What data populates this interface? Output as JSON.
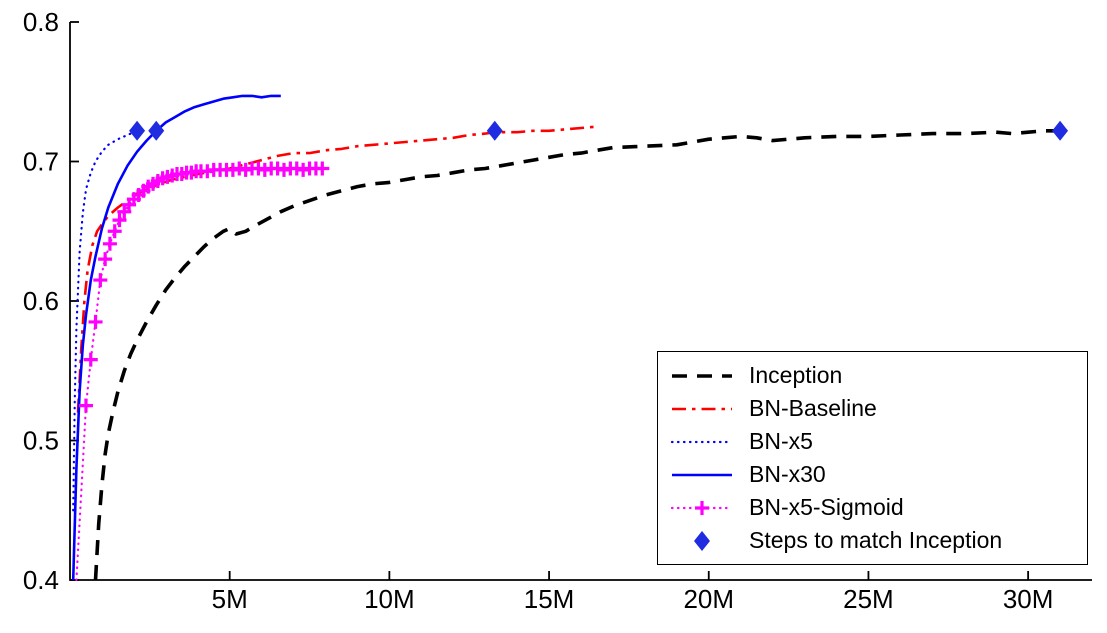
{
  "chart_data": {
    "type": "line",
    "title": "",
    "xlabel": "",
    "ylabel": "",
    "grid": false,
    "axis_color": "#000000",
    "background": "#ffffff",
    "xlim": [
      0,
      32
    ],
    "ylim": [
      0.4,
      0.8
    ],
    "x_tick_format": "millions",
    "xticks": [
      {
        "value": 5,
        "label": "5M"
      },
      {
        "value": 10,
        "label": "10M"
      },
      {
        "value": 15,
        "label": "15M"
      },
      {
        "value": 20,
        "label": "20M"
      },
      {
        "value": 25,
        "label": "25M"
      },
      {
        "value": 30,
        "label": "30M"
      }
    ],
    "yticks": [
      {
        "value": 0.4,
        "label": "0.4"
      },
      {
        "value": 0.5,
        "label": "0.5"
      },
      {
        "value": 0.6,
        "label": "0.6"
      },
      {
        "value": 0.7,
        "label": "0.7"
      },
      {
        "value": 0.8,
        "label": "0.8"
      }
    ],
    "legend_position": "lower right",
    "series": [
      {
        "name": "Inception",
        "color": "#000000",
        "line": "dashed",
        "width": 3.6,
        "marker": null,
        "points": [
          [
            0.8,
            0.4
          ],
          [
            0.9,
            0.44
          ],
          [
            1.0,
            0.468
          ],
          [
            1.1,
            0.49
          ],
          [
            1.2,
            0.505
          ],
          [
            1.35,
            0.521
          ],
          [
            1.5,
            0.535
          ],
          [
            1.7,
            0.55
          ],
          [
            1.9,
            0.562
          ],
          [
            2.1,
            0.572
          ],
          [
            2.4,
            0.585
          ],
          [
            2.7,
            0.597
          ],
          [
            3.0,
            0.608
          ],
          [
            3.3,
            0.617
          ],
          [
            3.6,
            0.625
          ],
          [
            3.9,
            0.632
          ],
          [
            4.2,
            0.639
          ],
          [
            4.5,
            0.645
          ],
          [
            4.8,
            0.65
          ],
          [
            5.0,
            0.652
          ],
          [
            5.2,
            0.648
          ],
          [
            5.5,
            0.65
          ],
          [
            5.8,
            0.654
          ],
          [
            6.2,
            0.659
          ],
          [
            6.6,
            0.664
          ],
          [
            7.0,
            0.668
          ],
          [
            7.5,
            0.672
          ],
          [
            8.0,
            0.676
          ],
          [
            8.5,
            0.679
          ],
          [
            9.0,
            0.682
          ],
          [
            9.5,
            0.684
          ],
          [
            10.0,
            0.685
          ],
          [
            10.5,
            0.687
          ],
          [
            11.0,
            0.689
          ],
          [
            11.5,
            0.69
          ],
          [
            12.0,
            0.692
          ],
          [
            12.5,
            0.694
          ],
          [
            13.0,
            0.695
          ],
          [
            13.5,
            0.697
          ],
          [
            14.0,
            0.699
          ],
          [
            14.5,
            0.701
          ],
          [
            15.0,
            0.703
          ],
          [
            15.5,
            0.705
          ],
          [
            16.0,
            0.706
          ],
          [
            16.5,
            0.708
          ],
          [
            17.0,
            0.71
          ],
          [
            18.0,
            0.711
          ],
          [
            19.0,
            0.712
          ],
          [
            19.5,
            0.714
          ],
          [
            20.0,
            0.716
          ],
          [
            20.5,
            0.717
          ],
          [
            21.0,
            0.718
          ],
          [
            21.5,
            0.717
          ],
          [
            22.0,
            0.715
          ],
          [
            22.5,
            0.716
          ],
          [
            23.0,
            0.717
          ],
          [
            24.0,
            0.718
          ],
          [
            25.0,
            0.718
          ],
          [
            26.0,
            0.719
          ],
          [
            27.0,
            0.72
          ],
          [
            28.0,
            0.72
          ],
          [
            29.0,
            0.721
          ],
          [
            29.5,
            0.72
          ],
          [
            30.0,
            0.721
          ],
          [
            30.5,
            0.722
          ],
          [
            31.0,
            0.722
          ]
        ]
      },
      {
        "name": "BN-Baseline",
        "color": "#ff0000",
        "line": "dashdot",
        "width": 2.6,
        "marker": null,
        "points": [
          [
            0.25,
            0.52
          ],
          [
            0.35,
            0.565
          ],
          [
            0.45,
            0.6
          ],
          [
            0.55,
            0.622
          ],
          [
            0.7,
            0.64
          ],
          [
            0.85,
            0.65
          ],
          [
            1.0,
            0.655
          ],
          [
            1.2,
            0.661
          ],
          [
            1.5,
            0.667
          ],
          [
            1.8,
            0.672
          ],
          [
            2.1,
            0.677
          ],
          [
            2.4,
            0.68
          ],
          [
            2.8,
            0.684
          ],
          [
            3.2,
            0.687
          ],
          [
            3.6,
            0.689
          ],
          [
            4.0,
            0.691
          ],
          [
            4.5,
            0.693
          ],
          [
            5.0,
            0.695
          ],
          [
            5.5,
            0.698
          ],
          [
            6.0,
            0.701
          ],
          [
            6.5,
            0.704
          ],
          [
            7.0,
            0.706
          ],
          [
            7.5,
            0.706
          ],
          [
            8.0,
            0.708
          ],
          [
            8.5,
            0.709
          ],
          [
            9.0,
            0.711
          ],
          [
            9.5,
            0.712
          ],
          [
            10.0,
            0.713
          ],
          [
            10.5,
            0.714
          ],
          [
            11.0,
            0.715
          ],
          [
            11.5,
            0.716
          ],
          [
            12.0,
            0.717
          ],
          [
            12.5,
            0.719
          ],
          [
            13.0,
            0.72
          ],
          [
            13.3,
            0.721
          ],
          [
            14.0,
            0.721
          ],
          [
            14.5,
            0.722
          ],
          [
            15.0,
            0.722
          ],
          [
            15.5,
            0.723
          ],
          [
            16.0,
            0.724
          ],
          [
            16.5,
            0.725
          ]
        ]
      },
      {
        "name": "BN-x5",
        "color": "#0000ff",
        "line": "dotted",
        "width": 2.2,
        "marker": null,
        "points": [
          [
            0.1,
            0.45
          ],
          [
            0.15,
            0.53
          ],
          [
            0.2,
            0.58
          ],
          [
            0.3,
            0.635
          ],
          [
            0.4,
            0.663
          ],
          [
            0.5,
            0.68
          ],
          [
            0.65,
            0.692
          ],
          [
            0.8,
            0.7
          ],
          [
            1.0,
            0.707
          ],
          [
            1.2,
            0.712
          ],
          [
            1.5,
            0.716
          ],
          [
            1.8,
            0.719
          ],
          [
            2.0,
            0.721
          ],
          [
            2.2,
            0.722
          ]
        ]
      },
      {
        "name": "BN-x30",
        "color": "#0000ff",
        "line": "solid",
        "width": 2.6,
        "marker": null,
        "points": [
          [
            0.1,
            0.4
          ],
          [
            0.15,
            0.44
          ],
          [
            0.2,
            0.48
          ],
          [
            0.3,
            0.535
          ],
          [
            0.4,
            0.568
          ],
          [
            0.5,
            0.59
          ],
          [
            0.65,
            0.615
          ],
          [
            0.8,
            0.632
          ],
          [
            1.0,
            0.652
          ],
          [
            1.2,
            0.667
          ],
          [
            1.5,
            0.684
          ],
          [
            1.8,
            0.697
          ],
          [
            2.1,
            0.707
          ],
          [
            2.4,
            0.715
          ],
          [
            2.7,
            0.722
          ],
          [
            3.0,
            0.728
          ],
          [
            3.3,
            0.732
          ],
          [
            3.6,
            0.736
          ],
          [
            3.9,
            0.739
          ],
          [
            4.2,
            0.741
          ],
          [
            4.5,
            0.743
          ],
          [
            4.8,
            0.745
          ],
          [
            5.1,
            0.746
          ],
          [
            5.4,
            0.747
          ],
          [
            5.7,
            0.747
          ],
          [
            6.0,
            0.746
          ],
          [
            6.3,
            0.747
          ],
          [
            6.6,
            0.747
          ]
        ]
      },
      {
        "name": "BN-x5-Sigmoid",
        "color": "#ff00ff",
        "line": "dotted",
        "width": 2.2,
        "marker": "plus",
        "marker_start_index": 2,
        "points": [
          [
            0.2,
            0.4
          ],
          [
            0.35,
            0.462
          ],
          [
            0.5,
            0.525
          ],
          [
            0.65,
            0.558
          ],
          [
            0.8,
            0.585
          ],
          [
            0.95,
            0.615
          ],
          [
            1.1,
            0.63
          ],
          [
            1.25,
            0.641
          ],
          [
            1.4,
            0.65
          ],
          [
            1.55,
            0.658
          ],
          [
            1.7,
            0.664
          ],
          [
            1.85,
            0.669
          ],
          [
            2.0,
            0.673
          ],
          [
            2.15,
            0.676
          ],
          [
            2.3,
            0.679
          ],
          [
            2.45,
            0.682
          ],
          [
            2.6,
            0.684
          ],
          [
            2.75,
            0.686
          ],
          [
            2.9,
            0.688
          ],
          [
            3.05,
            0.689
          ],
          [
            3.2,
            0.69
          ],
          [
            3.35,
            0.691
          ],
          [
            3.5,
            0.691
          ],
          [
            3.65,
            0.692
          ],
          [
            3.8,
            0.692
          ],
          [
            3.95,
            0.693
          ],
          [
            4.1,
            0.693
          ],
          [
            4.3,
            0.693
          ],
          [
            4.5,
            0.694
          ],
          [
            4.7,
            0.694
          ],
          [
            4.9,
            0.694
          ],
          [
            5.1,
            0.694
          ],
          [
            5.3,
            0.695
          ],
          [
            5.5,
            0.694
          ],
          [
            5.7,
            0.695
          ],
          [
            5.9,
            0.695
          ],
          [
            6.1,
            0.694
          ],
          [
            6.3,
            0.695
          ],
          [
            6.5,
            0.695
          ],
          [
            6.7,
            0.694
          ],
          [
            6.9,
            0.695
          ],
          [
            7.1,
            0.695
          ],
          [
            7.3,
            0.694
          ],
          [
            7.5,
            0.695
          ],
          [
            7.7,
            0.695
          ],
          [
            7.9,
            0.695
          ]
        ]
      },
      {
        "name": "Steps to match Inception",
        "color": "#1f2ce0",
        "line": "none",
        "width": 0,
        "marker": "diamond",
        "points": [
          [
            2.1,
            0.722
          ],
          [
            2.7,
            0.722
          ],
          [
            13.3,
            0.722
          ],
          [
            31.0,
            0.722
          ]
        ]
      }
    ]
  }
}
